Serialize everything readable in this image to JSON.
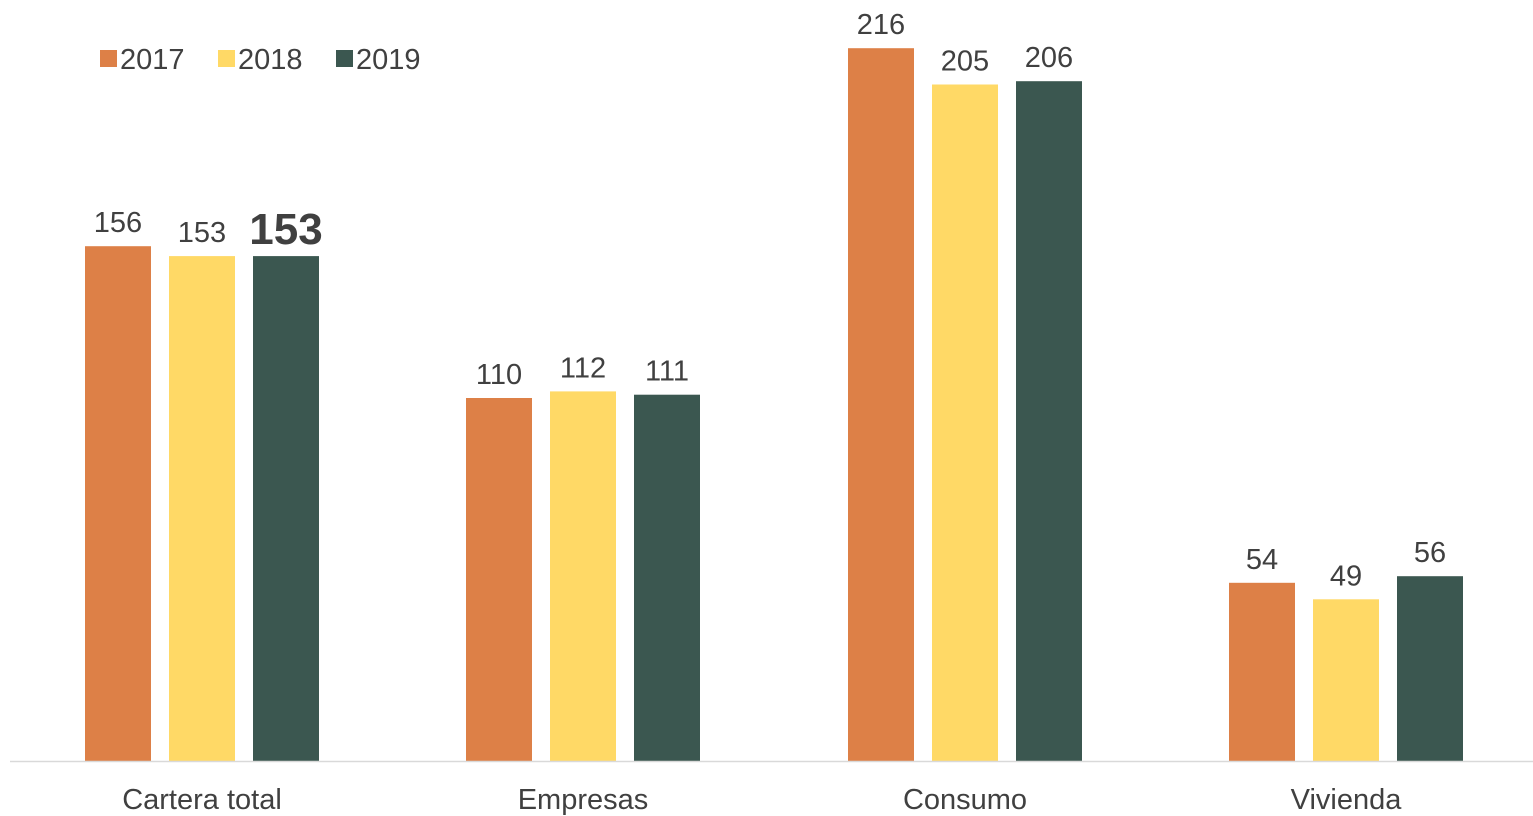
{
  "chart_data": {
    "type": "bar",
    "categories": [
      "Cartera total",
      "Empresas",
      "Consumo",
      "Vivienda"
    ],
    "series": [
      {
        "name": "2017",
        "color": "#DD8047",
        "values": [
          156,
          110,
          216,
          54
        ]
      },
      {
        "name": "2018",
        "color": "#FFD966",
        "values": [
          153,
          112,
          205,
          49
        ]
      },
      {
        "name": "2019",
        "color": "#3B5750",
        "values": [
          153,
          111,
          206,
          56
        ]
      }
    ],
    "data_labels": [
      [
        "156",
        "110",
        "216",
        "54"
      ],
      [
        "153",
        "112",
        "205",
        "49"
      ],
      [
        "153",
        "111",
        "206",
        "56"
      ]
    ],
    "emphasized_label": {
      "series": 2,
      "category": 0
    },
    "title": "",
    "xlabel": "",
    "ylabel": "",
    "ylim": [
      0,
      230
    ],
    "grid": false,
    "legend": "top-left",
    "axis_color": "#D9D9D9",
    "text_color": "#404040"
  }
}
